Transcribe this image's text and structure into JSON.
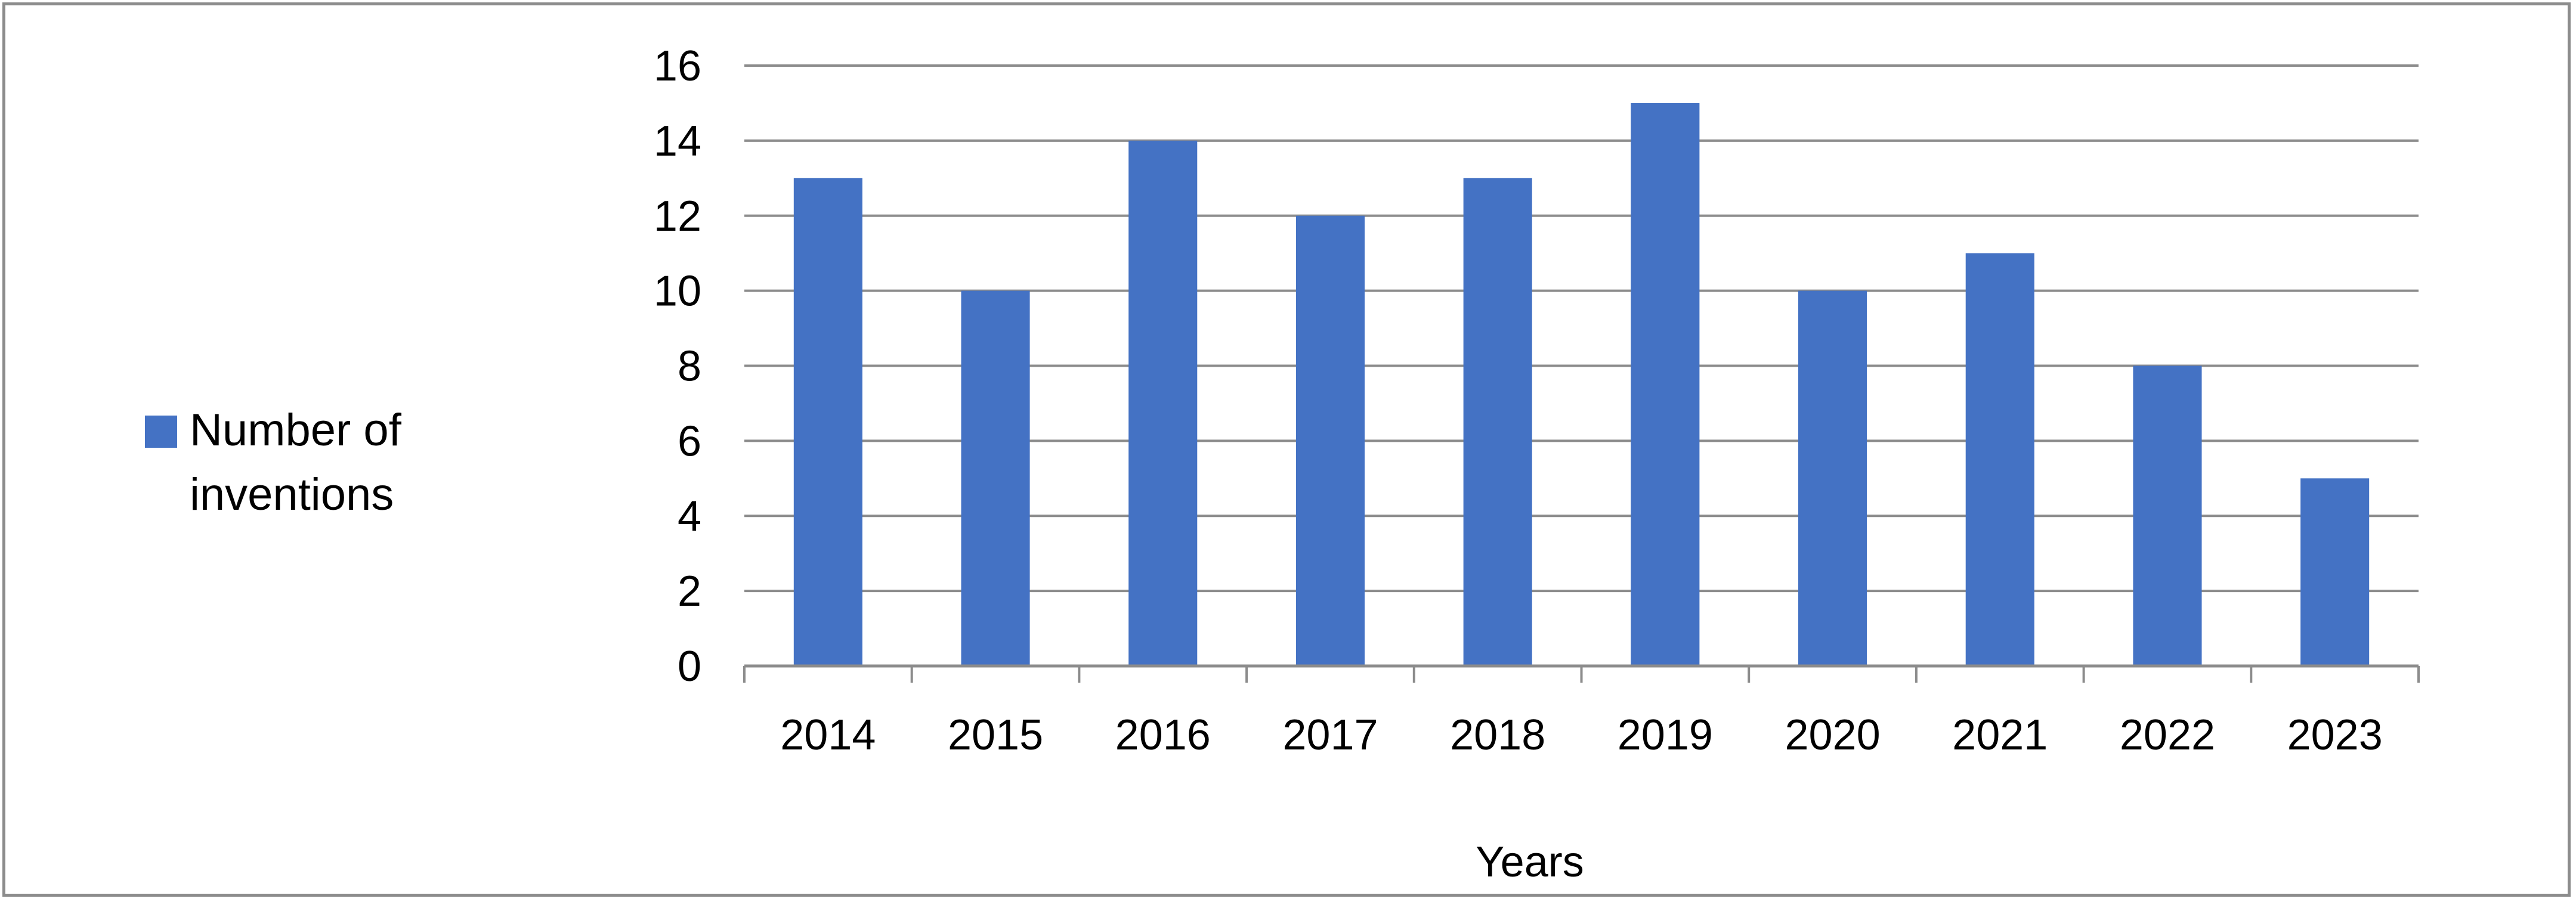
{
  "chart_data": {
    "type": "bar",
    "categories": [
      "2014",
      "2015",
      "2016",
      "2017",
      "2018",
      "2019",
      "2020",
      "2021",
      "2022",
      "2023"
    ],
    "series": [
      {
        "name": "Number of inventions",
        "values": [
          13,
          10,
          14,
          12,
          13,
          15,
          10,
          11,
          8,
          5
        ],
        "color": "#4472C4"
      }
    ],
    "title": "",
    "xlabel": "Years",
    "ylabel": "",
    "ylim": [
      0,
      16
    ],
    "yticks": [
      0,
      2,
      4,
      6,
      8,
      10,
      12,
      14,
      16
    ],
    "grid": true,
    "legend_position": "left",
    "legend_lines": [
      "Number of",
      "inventions"
    ],
    "gridline_color": "#8c8c8c",
    "axis_color": "#8c8c8c"
  }
}
